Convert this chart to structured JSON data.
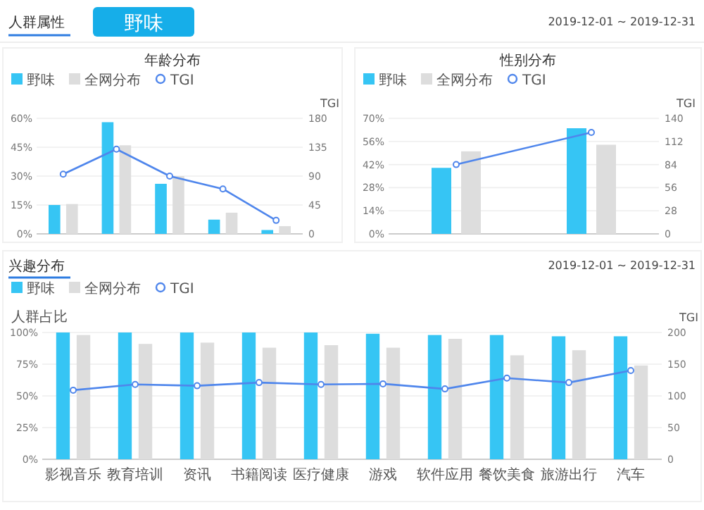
{
  "chart_data": [
    {
      "type": "bar",
      "title": "年龄分布",
      "annotations": [
        "人群属性",
        "野味"
      ],
      "categories": [
        null,
        null,
        null,
        null,
        null
      ],
      "series": [
        {
          "name": "野味",
          "color": "#36c5f4",
          "values": [
            15,
            58,
            26,
            7.4,
            2
          ]
        },
        {
          "name": "全网分布",
          "color": "#dddddd",
          "values": [
            15.5,
            46,
            30,
            11,
            4
          ]
        },
        {
          "name": "TGI",
          "type": "line",
          "axis": "y2",
          "color": "#4f86ec",
          "values": [
            93,
            132,
            90,
            70,
            21
          ]
        }
      ],
      "ylim": [
        0,
        60
      ],
      "yticks": [
        {
          "value": 0,
          "label": "0%"
        },
        {
          "value": 15,
          "label": "15%"
        },
        {
          "value": 30,
          "label": "30%"
        },
        {
          "value": 45,
          "label": "45%"
        },
        {
          "value": 60,
          "label": "60%"
        }
      ],
      "y2label": "TGI",
      "y2lim": [
        0,
        180
      ],
      "y2ticks": [
        0,
        45,
        90,
        135,
        180
      ],
      "grid": "y",
      "legend": "top left",
      "marker": "circle"
    },
    {
      "type": "bar",
      "title": "性别分布",
      "annotations": [
        "2019-12-01 ~ 2019-12-31"
      ],
      "categories": [
        null,
        null
      ],
      "series": [
        {
          "name": "野味",
          "color": "#36c5f4",
          "values": [
            40,
            64
          ]
        },
        {
          "name": "全网分布",
          "color": "#dddddd",
          "values": [
            50,
            54
          ]
        },
        {
          "name": "TGI",
          "type": "line",
          "axis": "y2",
          "color": "#4f86ec",
          "values": [
            84,
            123
          ]
        }
      ],
      "ylim": [
        0,
        70
      ],
      "yticks": [
        {
          "value": 0,
          "label": "0%"
        },
        {
          "value": 14,
          "label": "14%"
        },
        {
          "value": 28,
          "label": "28%"
        },
        {
          "value": 42,
          "label": "42%"
        },
        {
          "value": 56,
          "label": "56%"
        },
        {
          "value": 70,
          "label": "70%"
        }
      ],
      "y2label": "TGI",
      "y2lim": [
        0,
        140
      ],
      "y2ticks": [
        0,
        28,
        56,
        84,
        112,
        140
      ],
      "grid": "y",
      "legend": "top left",
      "marker": "circle"
    },
    {
      "type": "bar",
      "title": "兴趣分布",
      "annotations": [
        "2019-12-01 ~ 2019-12-31"
      ],
      "ylabel": "人群占比",
      "categories": [
        "影视音乐",
        "教育培训",
        "资讯",
        "书籍阅读",
        "医疗健康",
        "游戏",
        "软件应用",
        "餐饮美食",
        "旅游出行",
        "汽车"
      ],
      "series": [
        {
          "name": "野味",
          "color": "#36c5f4",
          "values": [
            100,
            100,
            100,
            100,
            100,
            99,
            98,
            98,
            97,
            97
          ]
        },
        {
          "name": "全网分布",
          "color": "#dddddd",
          "values": [
            98,
            91,
            92,
            88,
            90,
            88,
            95,
            82,
            86,
            74
          ]
        },
        {
          "name": "TGI",
          "type": "line",
          "axis": "y2",
          "color": "#4f86ec",
          "values": [
            109,
            118,
            116,
            121,
            118,
            119,
            111,
            128,
            121,
            140
          ]
        }
      ],
      "ylim": [
        0,
        100
      ],
      "yticks": [
        {
          "value": 0,
          "label": "0%"
        },
        {
          "value": 25,
          "label": "25%"
        },
        {
          "value": 50,
          "label": "50%"
        },
        {
          "value": 75,
          "label": "75%"
        },
        {
          "value": 100,
          "label": "100%"
        }
      ],
      "y2label": "TGI",
      "y2lim": [
        0,
        200
      ],
      "y2ticks": [
        0,
        50,
        100,
        150,
        200
      ],
      "grid": "y",
      "legend": "top left",
      "marker": "circle"
    }
  ]
}
